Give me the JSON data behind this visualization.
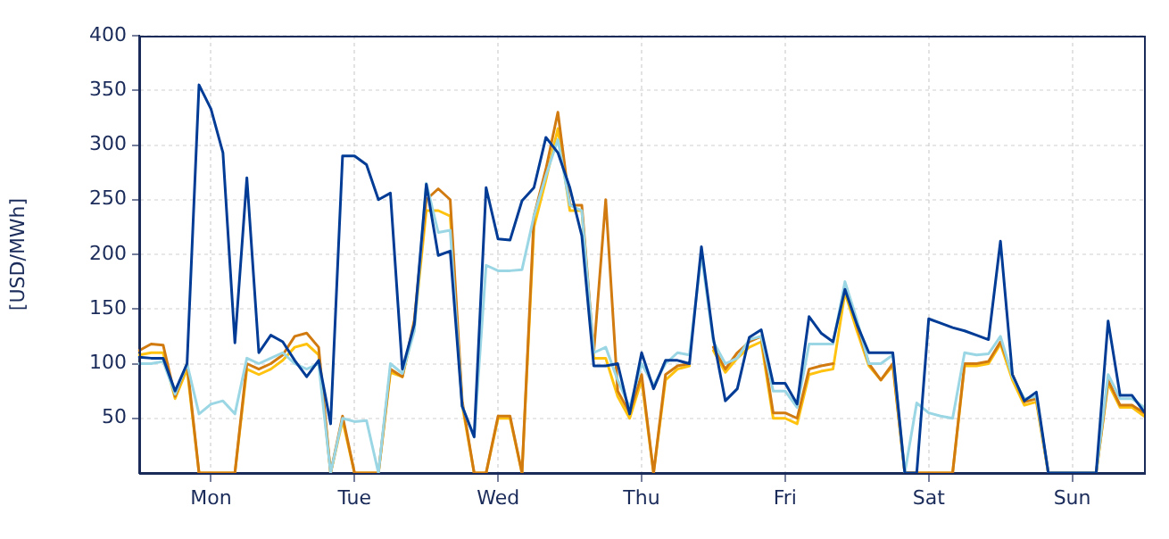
{
  "chart_data": {
    "type": "line",
    "ylabel": "[USD/MWh]",
    "categories": [
      null,
      null,
      null,
      null,
      null,
      null,
      "Mon",
      null,
      null,
      null,
      null,
      null,
      null,
      null,
      null,
      null,
      null,
      null,
      "Tue",
      null,
      null,
      null,
      null,
      null,
      null,
      null,
      null,
      null,
      null,
      null,
      "Wed",
      null,
      null,
      null,
      null,
      null,
      null,
      null,
      null,
      null,
      null,
      null,
      "Thu",
      null,
      null,
      null,
      null,
      null,
      null,
      null,
      null,
      null,
      null,
      null,
      "Fri",
      null,
      null,
      null,
      null,
      null,
      null,
      null,
      null,
      null,
      null,
      null,
      "Sat",
      null,
      null,
      null,
      null,
      null,
      null,
      null,
      null,
      null,
      null,
      null,
      "Sun",
      null,
      null,
      null,
      null,
      null,
      null
    ],
    "ylim": [
      0,
      400
    ],
    "yticks": [
      50,
      100,
      150,
      200,
      250,
      300,
      350,
      400
    ],
    "grid": true,
    "legend": false,
    "marker": "none",
    "line_style": "solid",
    "series": [
      {
        "color": "#003c96",
        "values": [
          106,
          105,
          105,
          75,
          100,
          355,
          333,
          293,
          119,
          270,
          110,
          126,
          120,
          103,
          88,
          103,
          45,
          290,
          290,
          282,
          250,
          256,
          95,
          136,
          264,
          199,
          203,
          61,
          33,
          261,
          214,
          213,
          249,
          261,
          307,
          293,
          261,
          217,
          98,
          98,
          100,
          54,
          110,
          77,
          103,
          103,
          100,
          207,
          123,
          66,
          77,
          124,
          131,
          82,
          82,
          63,
          143,
          128,
          120,
          168,
          136,
          110,
          110,
          110,
          0,
          0,
          141,
          137,
          133,
          130,
          126,
          122,
          212,
          90,
          66,
          74,
          0,
          0,
          0,
          0,
          0,
          139,
          71,
          71,
          56
        ]
      },
      {
        "color": "#9ad6e4",
        "values": [
          100,
          100,
          102,
          72,
          100,
          54,
          63,
          66,
          54,
          105,
          100,
          105,
          110,
          100,
          95,
          100,
          0,
          50,
          47,
          48,
          0,
          100,
          91,
          130,
          265,
          220,
          222,
          61,
          33,
          190,
          185,
          185,
          186,
          235,
          272,
          305,
          245,
          240,
          110,
          115,
          85,
          60,
          100,
          80,
          100,
          110,
          108,
          200,
          120,
          100,
          105,
          122,
          125,
          75,
          75,
          60,
          118,
          118,
          118,
          175,
          140,
          100,
          100,
          108,
          0,
          64,
          55,
          52,
          50,
          110,
          108,
          109,
          125,
          88,
          68,
          70,
          0,
          0,
          0,
          0,
          0,
          90,
          68,
          68,
          60
        ]
      },
      {
        "color": "#d07a10",
        "values": [
          112,
          118,
          117,
          70,
          100,
          0,
          0,
          0,
          0,
          100,
          95,
          100,
          108,
          125,
          128,
          115,
          0,
          52,
          0,
          0,
          0,
          95,
          88,
          140,
          250,
          260,
          250,
          66,
          0,
          0,
          52,
          52,
          0,
          235,
          278,
          330,
          245,
          245,
          110,
          250,
          75,
          55,
          90,
          0,
          90,
          98,
          100,
          null,
          115,
          95,
          110,
          120,
          125,
          55,
          55,
          50,
          95,
          98,
          100,
          null,
          135,
          100,
          85,
          100,
          0,
          0,
          0,
          0,
          0,
          100,
          100,
          102,
          120,
          90,
          65,
          68,
          0,
          0,
          0,
          0,
          0,
          85,
          62,
          62,
          55
        ]
      },
      {
        "color": "#ffc20e",
        "values": [
          108,
          110,
          110,
          68,
          95,
          0,
          0,
          0,
          0,
          95,
          90,
          95,
          103,
          115,
          118,
          108,
          0,
          48,
          0,
          0,
          0,
          92,
          88,
          135,
          240,
          240,
          235,
          62,
          0,
          0,
          50,
          50,
          0,
          225,
          268,
          315,
          240,
          240,
          105,
          105,
          70,
          50,
          85,
          0,
          85,
          95,
          98,
          null,
          112,
          92,
          105,
          115,
          120,
          50,
          50,
          45,
          90,
          93,
          95,
          165,
          130,
          98,
          85,
          98,
          0,
          0,
          0,
          0,
          0,
          98,
          98,
          100,
          118,
          85,
          62,
          65,
          0,
          0,
          0,
          0,
          0,
          82,
          60,
          60,
          52
        ]
      }
    ]
  }
}
